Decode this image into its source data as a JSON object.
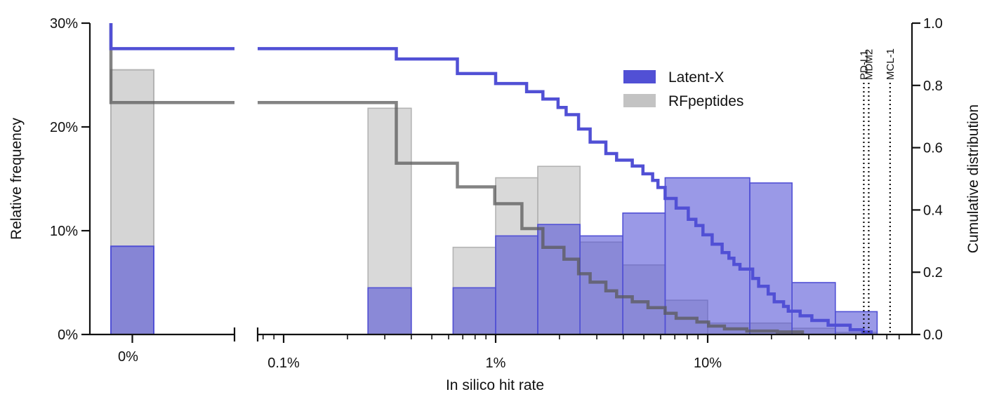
{
  "chart_data": {
    "type": "bar",
    "title": "",
    "xlabel": "In silico hit rate",
    "ylabel_left": "Relative frequency",
    "ylabel_right": "Cumulative distribution",
    "x_scale": "log (broken axis, separate 0% bin)",
    "x_tick_labels": [
      "0%",
      "0.1%",
      "1%",
      "10%"
    ],
    "y_left_tick_labels": [
      "0%",
      "10%",
      "20%",
      "30%"
    ],
    "y_right_tick_labels": [
      "0.0",
      "0.2",
      "0.4",
      "0.6",
      "0.8",
      "1.0"
    ],
    "ylim_left": [
      0,
      30
    ],
    "ylim_right": [
      0,
      1
    ],
    "xlim_percent": [
      0.075,
      80
    ],
    "legend": {
      "position": "top-center",
      "entries": [
        "Latent-X",
        "RFpeptides"
      ]
    },
    "colors": {
      "latentx": "#5150d5",
      "rfpeptides": "#b3b3b3",
      "rf_cdf": "#7f7f7f"
    },
    "histograms": [
      {
        "name": "Latent-X",
        "zero_bin": 8.5,
        "bins": [
          {
            "lo": 0.25,
            "hi": 0.4,
            "value": 4.5
          },
          {
            "lo": 0.63,
            "hi": 1.0,
            "value": 4.5
          },
          {
            "lo": 1.0,
            "hi": 1.58,
            "value": 9.5
          },
          {
            "lo": 1.58,
            "hi": 2.5,
            "value": 10.6
          },
          {
            "lo": 2.5,
            "hi": 3.98,
            "value": 9.5
          },
          {
            "lo": 3.98,
            "hi": 6.3,
            "value": 11.7
          },
          {
            "lo": 6.3,
            "hi": 15.8,
            "value": 15.1
          },
          {
            "lo": 15.8,
            "hi": 25,
            "value": 14.6
          },
          {
            "lo": 25,
            "hi": 40,
            "value": 5.0
          },
          {
            "lo": 40,
            "hi": 63,
            "value": 2.2
          }
        ]
      },
      {
        "name": "RFpeptides",
        "zero_bin": 25.5,
        "bins": [
          {
            "lo": 0.25,
            "hi": 0.4,
            "value": 21.8
          },
          {
            "lo": 0.63,
            "hi": 1.0,
            "value": 8.4
          },
          {
            "lo": 1.0,
            "hi": 1.58,
            "value": 15.1
          },
          {
            "lo": 1.58,
            "hi": 2.5,
            "value": 16.2
          },
          {
            "lo": 2.5,
            "hi": 3.98,
            "value": 8.9
          },
          {
            "lo": 3.98,
            "hi": 6.3,
            "value": 6.7
          },
          {
            "lo": 6.3,
            "hi": 10,
            "value": 3.3
          },
          {
            "lo": 10,
            "hi": 25,
            "value": 1.1
          },
          {
            "lo": 25,
            "hi": 40,
            "value": 0.6
          },
          {
            "lo": 40,
            "hi": 63,
            "value": 0.2
          }
        ]
      }
    ],
    "cdf_series": [
      {
        "name": "Latent-X",
        "start": 1.0,
        "zero_level": 0.918,
        "steps": [
          [
            0.34,
            0.885
          ],
          [
            0.66,
            0.838
          ],
          [
            1.0,
            0.806
          ],
          [
            1.4,
            0.78
          ],
          [
            1.67,
            0.756
          ],
          [
            1.97,
            0.729
          ],
          [
            2.15,
            0.706
          ],
          [
            2.46,
            0.66
          ],
          [
            2.79,
            0.618
          ],
          [
            3.31,
            0.581
          ],
          [
            3.72,
            0.56
          ],
          [
            4.41,
            0.541
          ],
          [
            4.95,
            0.516
          ],
          [
            5.5,
            0.495
          ],
          [
            5.83,
            0.472
          ],
          [
            6.3,
            0.437
          ],
          [
            7.1,
            0.406
          ],
          [
            8.1,
            0.37
          ],
          [
            8.8,
            0.35
          ],
          [
            9.5,
            0.32
          ],
          [
            10.5,
            0.29
          ],
          [
            11.7,
            0.263
          ],
          [
            12.6,
            0.245
          ],
          [
            13.3,
            0.225
          ],
          [
            14.2,
            0.21
          ],
          [
            16.3,
            0.18
          ],
          [
            17.4,
            0.155
          ],
          [
            19.3,
            0.13
          ],
          [
            20.6,
            0.105
          ],
          [
            22.8,
            0.09
          ],
          [
            24,
            0.075
          ],
          [
            27.3,
            0.06
          ],
          [
            31,
            0.045
          ],
          [
            37,
            0.03
          ],
          [
            47,
            0.015
          ],
          [
            54,
            0.008
          ],
          [
            59,
            0
          ]
        ]
      },
      {
        "name": "RFpeptides",
        "start": 1.0,
        "zero_level": 0.745,
        "steps": [
          [
            0.34,
            0.55
          ],
          [
            0.66,
            0.474
          ],
          [
            0.99,
            0.42
          ],
          [
            1.33,
            0.34
          ],
          [
            1.67,
            0.28
          ],
          [
            2.1,
            0.242
          ],
          [
            2.46,
            0.195
          ],
          [
            2.79,
            0.168
          ],
          [
            3.31,
            0.14
          ],
          [
            3.72,
            0.121
          ],
          [
            4.41,
            0.105
          ],
          [
            5.23,
            0.086
          ],
          [
            6.3,
            0.068
          ],
          [
            7.1,
            0.052
          ],
          [
            8.9,
            0.04
          ],
          [
            10.1,
            0.027
          ],
          [
            12,
            0.018
          ],
          [
            15.3,
            0.011
          ],
          [
            21.3,
            0.008
          ],
          [
            28,
            0
          ]
        ]
      }
    ],
    "markers": [
      {
        "label": "PD-L1",
        "x": 54.5
      },
      {
        "label": "MDM2",
        "x": 57.5
      },
      {
        "label": "MCL-1",
        "x": 72.5
      }
    ]
  }
}
